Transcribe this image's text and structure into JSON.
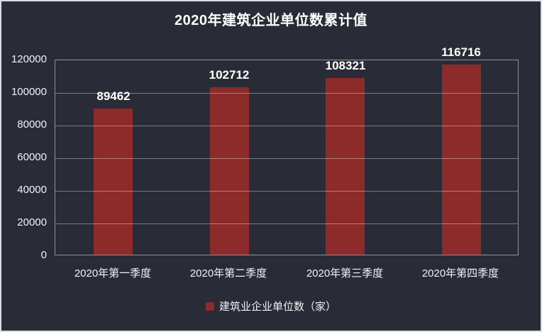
{
  "title": "2020年建筑企业单位数累计值",
  "colors": {
    "background": "#292b37",
    "bar": "#8d2b2b",
    "grid": "rgba(255,255,255,0.38)",
    "axis_border": "rgba(255,255,255,0.48)",
    "text": "#ffffff",
    "frame_border": "#dcdce2"
  },
  "legend": {
    "label": "建筑业企业单位数（家）",
    "marker_color": "#8d2b2b"
  },
  "chart_data": {
    "type": "bar",
    "title": "2020年建筑企业单位数累计值",
    "categories": [
      "2020年第一季度",
      "2020年第二季度",
      "2020年第三季度",
      "2020年第四季度"
    ],
    "values": [
      89462,
      102712,
      108321,
      116716
    ],
    "value_labels": [
      "89462",
      "102712",
      "108321",
      "116716"
    ],
    "xlabel": "",
    "ylabel": "",
    "ylim": [
      0,
      120000
    ],
    "yticks": [
      0,
      20000,
      40000,
      60000,
      80000,
      100000,
      120000
    ],
    "ytick_labels": [
      "0",
      "20000",
      "40000",
      "60000",
      "80000",
      "100000",
      "120000"
    ],
    "grid": true,
    "legend_entries": [
      "建筑业企业单位数（家）"
    ],
    "legend_position": "bottom",
    "bar_color": "#8d2b2b"
  }
}
